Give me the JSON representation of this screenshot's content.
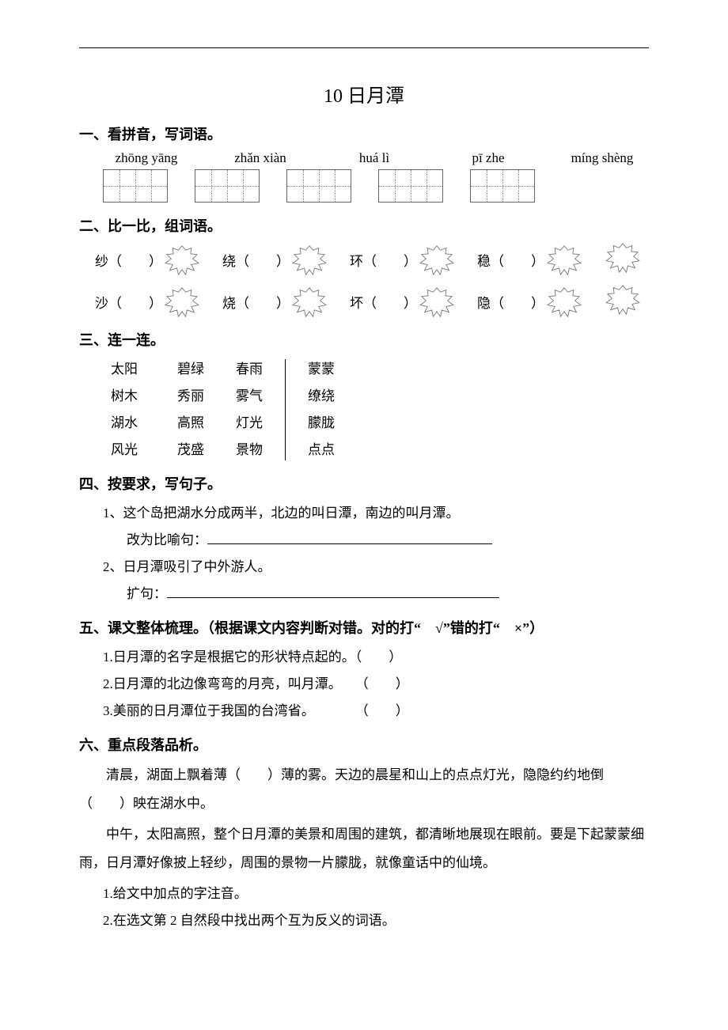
{
  "title": "10 日月潭",
  "sec1": {
    "header": "一、看拼音，写词语。",
    "pinyin": [
      "zhōng yāng",
      "zhǎn xiàn",
      "huá lì",
      "pī   zhe",
      "míng shèng"
    ]
  },
  "sec2": {
    "header": "二、比一比，组词语。",
    "row1": [
      "纱（　　）",
      "绕（　　）",
      "环（　　）",
      "稳（　　）"
    ],
    "row2": [
      "沙（　　）",
      "烧（　　）",
      "坏（　　）",
      "隐（　　）"
    ]
  },
  "sec3": {
    "header": "三、连一连。",
    "colA": [
      "太阳",
      "树木",
      "湖水",
      "风光"
    ],
    "colB": [
      "碧绿",
      "秀丽",
      "高照",
      "茂盛"
    ],
    "colC": [
      "春雨",
      "雾气",
      "灯光",
      "景物"
    ],
    "colD": [
      "蒙蒙",
      "缭绕",
      "朦胧",
      "点点"
    ]
  },
  "sec4": {
    "header": "四、按要求，写句子。",
    "q1": "1、这个岛把湖水分成两半，北边的叫日潭，南边的叫月潭。",
    "q1prompt": "改为比喻句：",
    "q2": "2、日月潭吸引了中外游人。",
    "q2prompt": "扩句：",
    "uline1_width": 360,
    "uline2_width": 420
  },
  "sec5": {
    "header": "五、课文整体梳理。（根据课文内容判断对错。对的打“　√”错的打“　×”）",
    "items": [
      "1.日月潭的名字是根据它的形状特点起的。（　　）",
      "2.日月潭的北边像弯弯的月亮，叫月潭。　　（　　）",
      "3.美丽的日月潭位于我国的台湾省。　　　　（　　）"
    ]
  },
  "sec6": {
    "header": "六、重点段落品析。",
    "p1": "清晨，湖面上飘着薄（　　）薄的雾。天边的晨星和山上的点点灯光，隐隐约约地倒（　　）映在湖水中。",
    "p2": "中午，太阳高照，整个日月潭的美景和周围的建筑，都清晰地展现在眼前。要是下起蒙蒙细雨，日月潭好像披上轻纱，周围的景物一片朦胧，就像童话中的仙境。",
    "q1": "1.给文中加点的字注音。",
    "q2": "2.在选文第 2 自然段中找出两个互为反义的词语。"
  },
  "style": {
    "leaf_stroke": "#777777"
  }
}
